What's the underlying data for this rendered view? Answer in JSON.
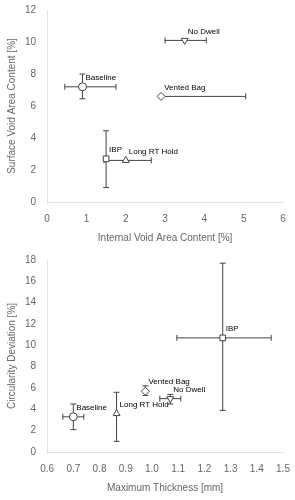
{
  "chart_data": [
    {
      "type": "scatter",
      "xlabel": "Internal Void Area Content [%]",
      "ylabel": "Surface Void Area Content [%]",
      "xlim": [
        0,
        6
      ],
      "ylim": [
        0,
        12
      ],
      "xticks": [
        0,
        1,
        2,
        3,
        4,
        5,
        6
      ],
      "yticks": [
        0,
        2,
        4,
        6,
        8,
        10,
        12
      ],
      "grid": false,
      "color": "#444444",
      "series": [
        {
          "name": "Baseline",
          "marker": "circle",
          "x": [
            0.9
          ],
          "values": [
            7.2
          ],
          "xerr_low": [
            0.45
          ],
          "xerr_high": [
            0.85
          ],
          "yerr_low": [
            0.75
          ],
          "yerr_high": [
            0.8
          ]
        },
        {
          "name": "No Dwell",
          "marker": "triangle_down",
          "x": [
            3.5
          ],
          "values": [
            10.1
          ],
          "xerr_low": [
            0.5
          ],
          "xerr_high": [
            0.55
          ],
          "yerr_low": [
            0.0
          ],
          "yerr_high": [
            0.0
          ]
        },
        {
          "name": "Vented Bag",
          "marker": "diamond",
          "x": [
            2.9
          ],
          "values": [
            6.6
          ],
          "xerr_low": [
            0.0
          ],
          "xerr_high": [
            2.15
          ],
          "yerr_low": [
            0.0
          ],
          "yerr_high": [
            0.0
          ]
        },
        {
          "name": "IBP",
          "marker": "square",
          "x": [
            1.5
          ],
          "values": [
            2.7
          ],
          "xerr_low": [
            0.0
          ],
          "xerr_high": [
            0.0
          ],
          "yerr_low": [
            1.8
          ],
          "yerr_high": [
            1.75
          ]
        },
        {
          "name": "Long RT Hold",
          "marker": "triangle_up",
          "x": [
            2.0
          ],
          "values": [
            2.6
          ],
          "xerr_low": [
            0.55
          ],
          "xerr_high": [
            0.65
          ],
          "yerr_low": [
            0.0
          ],
          "yerr_high": [
            0.0
          ]
        }
      ]
    },
    {
      "type": "scatter",
      "xlabel": "Maximum Thickness [mm]",
      "ylabel": "Circularity Deviation [%]",
      "xlim": [
        0.6,
        1.5
      ],
      "ylim": [
        0,
        18
      ],
      "xticks": [
        0.6,
        0.7,
        0.8,
        0.9,
        {
          "value": 1.0,
          "label": "1.0"
        },
        1.1,
        1.2,
        1.3,
        1.4,
        1.5
      ],
      "yticks": [
        0,
        2,
        4,
        6,
        8,
        10,
        12,
        14,
        16,
        18
      ],
      "grid": false,
      "color": "#444444",
      "series": [
        {
          "name": "Baseline",
          "marker": "circle",
          "x": [
            0.7
          ],
          "values": [
            3.3
          ],
          "xerr_low": [
            0.04
          ],
          "xerr_high": [
            0.04
          ],
          "yerr_low": [
            1.2
          ],
          "yerr_high": [
            1.2
          ]
        },
        {
          "name": "Long RT Hold",
          "marker": "triangle_up",
          "x": [
            0.865
          ],
          "values": [
            3.6
          ],
          "xerr_low": [
            0.0
          ],
          "xerr_high": [
            0.0
          ],
          "yerr_low": [
            2.6
          ],
          "yerr_high": [
            2.0
          ]
        },
        {
          "name": "Vented Bag",
          "marker": "diamond",
          "x": [
            0.975
          ],
          "values": [
            5.7
          ],
          "xerr_low": [
            0.0
          ],
          "xerr_high": [
            0.0
          ],
          "yerr_low": [
            0.4
          ],
          "yerr_high": [
            0.5
          ]
        },
        {
          "name": "No Dwell",
          "marker": "triangle_down",
          "x": [
            1.07
          ],
          "values": [
            5.0
          ],
          "xerr_low": [
            0.04
          ],
          "xerr_high": [
            0.04
          ],
          "yerr_low": [
            0.5
          ],
          "yerr_high": [
            0.4
          ]
        },
        {
          "name": "IBP",
          "marker": "square",
          "x": [
            1.27
          ],
          "values": [
            10.7
          ],
          "xerr_low": [
            0.175
          ],
          "xerr_high": [
            0.185
          ],
          "yerr_low": [
            6.8
          ],
          "yerr_high": [
            7.0
          ]
        }
      ]
    }
  ]
}
